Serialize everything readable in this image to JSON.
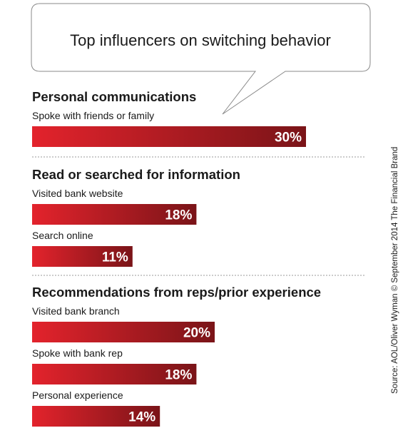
{
  "chart_data": {
    "type": "bar",
    "orientation": "horizontal",
    "title": "Top influencers on switching behavior",
    "source": "Source: AOL/Oliver Wyman © September 2014 The Financial Brand",
    "value_suffix": "%",
    "xlim": [
      0,
      38
    ],
    "grid": false,
    "groups": [
      {
        "name": "Personal communications",
        "items": [
          {
            "label": "Spoke with friends or family",
            "value": 30
          }
        ]
      },
      {
        "name": "Read or searched for information",
        "items": [
          {
            "label": "Visited bank website",
            "value": 18
          },
          {
            "label": "Search online",
            "value": 11
          }
        ]
      },
      {
        "name": "Recommendations from reps/prior experience",
        "items": [
          {
            "label": "Visited bank branch",
            "value": 20
          },
          {
            "label": "Spoke with bank rep",
            "value": 18
          },
          {
            "label": "Personal experience",
            "value": 14
          }
        ]
      }
    ]
  },
  "colors": {
    "bar_start": "#e3232c",
    "bar_end": "#7a1418",
    "divider": "#9a9a9a",
    "bubble_stroke": "#8a8a8a"
  }
}
